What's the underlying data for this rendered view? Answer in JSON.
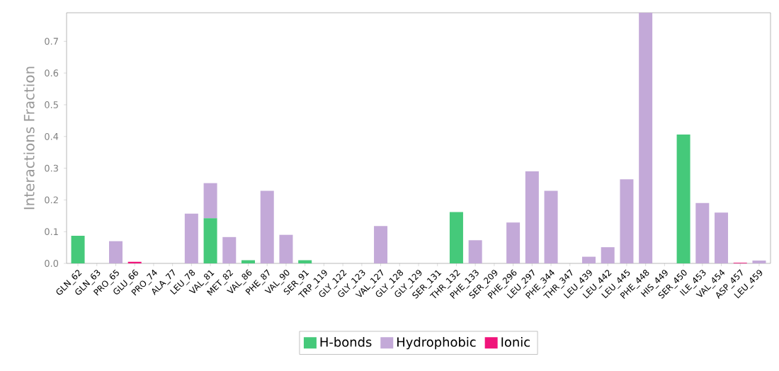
{
  "chart_data": {
    "type": "bar",
    "stacked": true,
    "ylabel": "Interactions Fraction",
    "categories": [
      "GLN_62",
      "GLN_63",
      "PRO_65",
      "GLU_66",
      "PRO_74",
      "ALA_77",
      "LEU_78",
      "VAL_81",
      "MET_82",
      "VAL_86",
      "PHE_87",
      "VAL_90",
      "SER_91",
      "TRP_119",
      "GLY_122",
      "GLY_123",
      "VAL_127",
      "GLY_128",
      "GLY_129",
      "SER_131",
      "THR_132",
      "PHE_133",
      "SER_209",
      "PHE_296",
      "LEU_297",
      "PHE_344",
      "THR_347",
      "LEU_439",
      "LEU_442",
      "LEU_445",
      "PHE_448",
      "HIS_449",
      "SER_450",
      "ILE_453",
      "VAL_454",
      "ASP_457",
      "LEU_459"
    ],
    "series": [
      {
        "name": "H-bonds",
        "color": "#45c97a",
        "values": [
          0.087,
          0,
          0,
          0,
          0,
          0,
          0,
          0.142,
          0,
          0.01,
          0,
          0,
          0.01,
          0,
          0,
          0,
          0,
          0,
          0,
          0,
          0.162,
          0,
          0,
          0,
          0,
          0,
          0,
          0,
          0,
          0,
          0,
          0,
          0.406,
          0,
          0,
          0,
          0
        ]
      },
      {
        "name": "Hydrophobic",
        "color": "#c3a9d8",
        "values": [
          0,
          0,
          0.07,
          0,
          0,
          null,
          0.157,
          0.111,
          0.083,
          null,
          0.229,
          0.09,
          0,
          0,
          0,
          0,
          0.118,
          0,
          0,
          0,
          0,
          0.073,
          0,
          0.129,
          0.29,
          0.229,
          0,
          0.021,
          0.051,
          0.265,
          0.79,
          0,
          0,
          0.19,
          0.16,
          0,
          0.009
        ]
      },
      {
        "name": "Ionic",
        "color": "#f0147a",
        "values": [
          0,
          0,
          0,
          0.005,
          0,
          0,
          0,
          0,
          0,
          0,
          0,
          0,
          0,
          0,
          0,
          0,
          0,
          0,
          0,
          0,
          0,
          0,
          0,
          0,
          0,
          0,
          0,
          0,
          0,
          0,
          0,
          0,
          0,
          0,
          0,
          0.002,
          0
        ]
      }
    ],
    "ylim": [
      0,
      0.79
    ],
    "yticks": [
      {
        "value": 0,
        "label": "0.0"
      },
      {
        "value": 0.1,
        "label": "0.1"
      },
      {
        "value": 0.2,
        "label": "0.2"
      },
      {
        "value": 0.3,
        "label": "0.3"
      },
      {
        "value": 0.4,
        "label": "0.4"
      },
      {
        "value": 0.5,
        "label": "0.5"
      },
      {
        "value": 0.6,
        "label": "0.6"
      },
      {
        "value": 0.7,
        "label": "0.7"
      }
    ],
    "grid": false,
    "legend": "bottom"
  }
}
